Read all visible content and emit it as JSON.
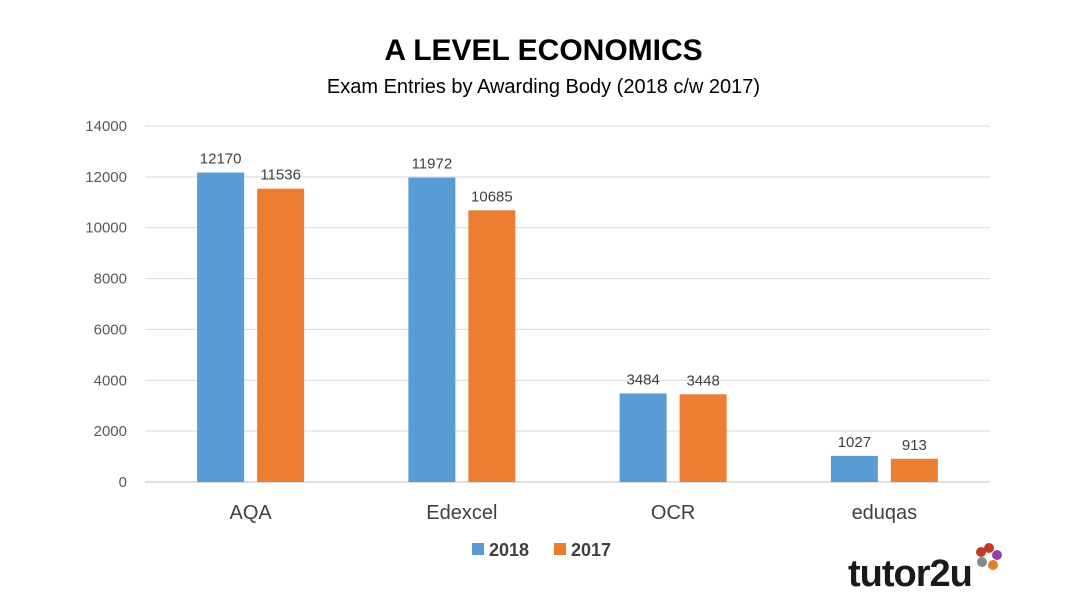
{
  "chart_data": {
    "type": "bar",
    "title": "A LEVEL ECONOMICS",
    "subtitle": "Exam Entries by Awarding Body (2018 c/w 2017)",
    "categories": [
      "AQA",
      "Edexcel",
      "OCR",
      "eduqas"
    ],
    "series": [
      {
        "name": "2018",
        "color": "#5B9BD5",
        "values": [
          12170,
          11972,
          3484,
          1027
        ]
      },
      {
        "name": "2017",
        "color": "#ED7D31",
        "values": [
          11536,
          10685,
          3448,
          913
        ]
      }
    ],
    "ylim": [
      0,
      14000
    ],
    "yticks": [
      0,
      2000,
      4000,
      6000,
      8000,
      10000,
      12000,
      14000
    ],
    "grid": true,
    "legend": "bottom",
    "data_labels": true
  },
  "logo": {
    "text": "tutor2u",
    "icon": "flower-icon",
    "colors": [
      "#C0392B",
      "#8E44AD",
      "#E67E22",
      "#7F8C8D"
    ]
  }
}
